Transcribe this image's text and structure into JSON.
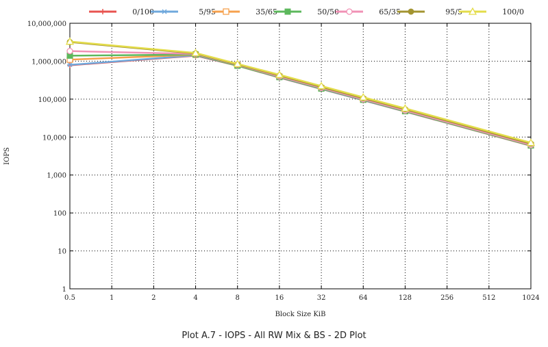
{
  "caption": "Plot A.7 - IOPS - All RW Mix & BS - 2D Plot",
  "chart_data": {
    "type": "line",
    "title": "",
    "xlabel": "Block Size KiB",
    "ylabel": "IOPS",
    "x_scale": "log2",
    "y_scale": "log10",
    "ylim": [
      1,
      10000000
    ],
    "grid": true,
    "legend_position": "top",
    "categories": [
      "0.5",
      "1",
      "2",
      "4",
      "8",
      "16",
      "32",
      "64",
      "128",
      "256",
      "512",
      "1024"
    ],
    "y_tick_labels": [
      "1",
      "10",
      "100",
      "1,000",
      "10,000",
      "100,000",
      "1,000,000",
      "10,000,000"
    ],
    "x": [
      0.5,
      4,
      8,
      16,
      32,
      64,
      128,
      1024
    ],
    "series": [
      {
        "name": "0/100",
        "color": "#e8534f",
        "marker": "plus",
        "values": [
          780000,
          1400000,
          760000,
          370000,
          185000,
          93000,
          47000,
          5900
        ]
      },
      {
        "name": "5/95",
        "color": "#6fa8dc",
        "marker": "asterisk",
        "values": [
          800000,
          1430000,
          770000,
          375000,
          187000,
          94000,
          47500,
          6000
        ]
      },
      {
        "name": "35/65",
        "color": "#f6a04d",
        "marker": "open-square",
        "values": [
          1100000,
          1480000,
          790000,
          390000,
          195000,
          98000,
          49000,
          6100
        ]
      },
      {
        "name": "50/50",
        "color": "#5cb85c",
        "marker": "filled-square",
        "values": [
          1400000,
          1500000,
          760000,
          380000,
          190000,
          96000,
          48000,
          6000
        ]
      },
      {
        "name": "65/35",
        "color": "#f191b5",
        "marker": "open-circle",
        "values": [
          1850000,
          1550000,
          800000,
          395000,
          198000,
          99000,
          50000,
          6200
        ]
      },
      {
        "name": "95/5",
        "color": "#a39431",
        "marker": "filled-circle",
        "values": [
          3200000,
          1600000,
          820000,
          420000,
          210000,
          106000,
          54000,
          6700
        ]
      },
      {
        "name": "100/0",
        "color": "#e3dc4a",
        "marker": "open-triangle",
        "values": [
          3300000,
          1650000,
          850000,
          440000,
          222000,
          112000,
          57000,
          7100
        ]
      }
    ]
  }
}
